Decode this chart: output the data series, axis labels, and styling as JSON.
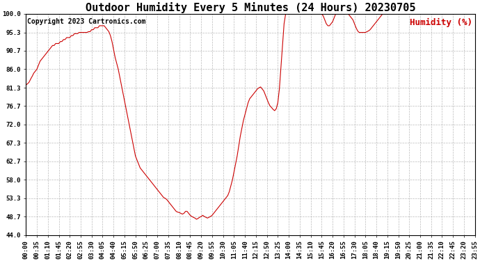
{
  "title": "Outdoor Humidity Every 5 Minutes (24 Hours) 20230705",
  "copyright": "Copyright 2023 Cartronics.com",
  "legend_label": "Humidity (%)",
  "line_color": "#cc0000",
  "legend_color": "#cc0000",
  "background_color": "#ffffff",
  "grid_color": "#aaaaaa",
  "ylim": [
    44.0,
    100.0
  ],
  "yticks": [
    44.0,
    48.7,
    53.3,
    58.0,
    62.7,
    67.3,
    72.0,
    76.7,
    81.3,
    86.0,
    90.7,
    95.3,
    100.0
  ],
  "title_fontsize": 11,
  "copyright_fontsize": 7,
  "legend_fontsize": 9,
  "tick_fontsize": 6.5,
  "xtick_labels": [
    "00:00",
    "00:35",
    "01:10",
    "01:45",
    "02:20",
    "02:55",
    "03:30",
    "04:05",
    "04:40",
    "05:15",
    "05:50",
    "06:25",
    "07:00",
    "07:35",
    "08:10",
    "08:45",
    "09:20",
    "09:55",
    "10:30",
    "11:05",
    "11:40",
    "12:15",
    "12:50",
    "13:25",
    "14:00",
    "14:35",
    "15:10",
    "15:45",
    "16:20",
    "16:55",
    "17:30",
    "18:05",
    "18:40",
    "19:15",
    "19:50",
    "20:25",
    "21:00",
    "21:35",
    "22:10",
    "22:45",
    "23:20",
    "23:55"
  ],
  "humidity_data": [
    82.0,
    82.3,
    82.7,
    83.5,
    84.2,
    85.0,
    85.5,
    86.0,
    87.0,
    88.0,
    88.5,
    89.0,
    89.5,
    90.0,
    90.5,
    91.0,
    91.5,
    92.0,
    92.0,
    92.5,
    92.5,
    92.5,
    93.0,
    93.0,
    93.5,
    93.5,
    94.0,
    94.0,
    94.0,
    94.5,
    94.5,
    95.0,
    95.0,
    95.0,
    95.3,
    95.3,
    95.3,
    95.3,
    95.3,
    95.3,
    95.5,
    95.5,
    96.0,
    96.0,
    96.5,
    96.5,
    96.5,
    97.0,
    97.0,
    97.0,
    97.0,
    96.5,
    96.0,
    95.5,
    94.5,
    93.0,
    91.0,
    89.0,
    87.5,
    86.0,
    84.0,
    82.0,
    80.0,
    78.0,
    76.0,
    74.0,
    72.0,
    70.0,
    68.0,
    66.0,
    64.0,
    63.0,
    62.0,
    61.0,
    60.5,
    60.0,
    59.5,
    59.0,
    58.5,
    58.0,
    57.5,
    57.0,
    56.5,
    56.0,
    55.5,
    55.0,
    54.5,
    54.0,
    53.5,
    53.3,
    53.0,
    52.5,
    52.0,
    51.5,
    51.0,
    50.5,
    50.0,
    49.8,
    49.7,
    49.5,
    49.3,
    49.5,
    50.0,
    50.0,
    49.5,
    49.0,
    48.7,
    48.5,
    48.3,
    48.0,
    48.2,
    48.5,
    48.7,
    49.0,
    48.7,
    48.5,
    48.3,
    48.5,
    48.7,
    49.0,
    49.5,
    50.0,
    50.5,
    51.0,
    51.5,
    52.0,
    52.5,
    53.0,
    53.5,
    54.0,
    55.0,
    56.5,
    58.0,
    60.0,
    62.0,
    64.0,
    66.5,
    69.0,
    71.0,
    73.0,
    74.5,
    76.0,
    77.5,
    78.5,
    79.0,
    79.5,
    80.0,
    80.5,
    81.0,
    81.3,
    81.5,
    81.0,
    80.5,
    79.5,
    78.5,
    77.5,
    76.7,
    76.3,
    75.8,
    75.5,
    76.0,
    77.5,
    81.0,
    86.5,
    92.0,
    97.5,
    100.0,
    100.0,
    100.0,
    100.0,
    100.0,
    100.0,
    100.0,
    100.0,
    100.0,
    100.0,
    100.0,
    100.0,
    100.0,
    100.0,
    100.0,
    100.0,
    100.0,
    100.0,
    100.0,
    100.0,
    100.0,
    100.0,
    100.0,
    100.0,
    99.5,
    98.5,
    97.5,
    97.0,
    97.0,
    97.5,
    98.0,
    99.0,
    100.0,
    100.0,
    100.0,
    100.0,
    100.0,
    100.0,
    100.0,
    100.0,
    100.0,
    99.5,
    99.0,
    98.5,
    97.5,
    96.5,
    95.7,
    95.3,
    95.3,
    95.3,
    95.3,
    95.3,
    95.5,
    95.7,
    96.0,
    96.5,
    97.0,
    97.5,
    98.0,
    98.5,
    99.0,
    99.5,
    100.0,
    100.0,
    100.0,
    100.0,
    100.0,
    100.0,
    100.0,
    100.0,
    100.0,
    100.0,
    100.0,
    100.0,
    100.0,
    100.0,
    100.0,
    100.0,
    100.0,
    100.0,
    100.0,
    100.0,
    100.0,
    100.0,
    100.0,
    100.0,
    100.0,
    100.0,
    100.0,
    100.0,
    100.0,
    100.0,
    100.0,
    100.0,
    100.0,
    100.0,
    100.0,
    100.0,
    100.0,
    100.0,
    100.0,
    100.0,
    100.0,
    100.0,
    100.0,
    100.0,
    100.0,
    100.0,
    100.0,
    100.0,
    100.0,
    100.0,
    100.0,
    100.0,
    100.0,
    100.0,
    100.0,
    100.0,
    100.0,
    100.0,
    100.0,
    100.0
  ]
}
